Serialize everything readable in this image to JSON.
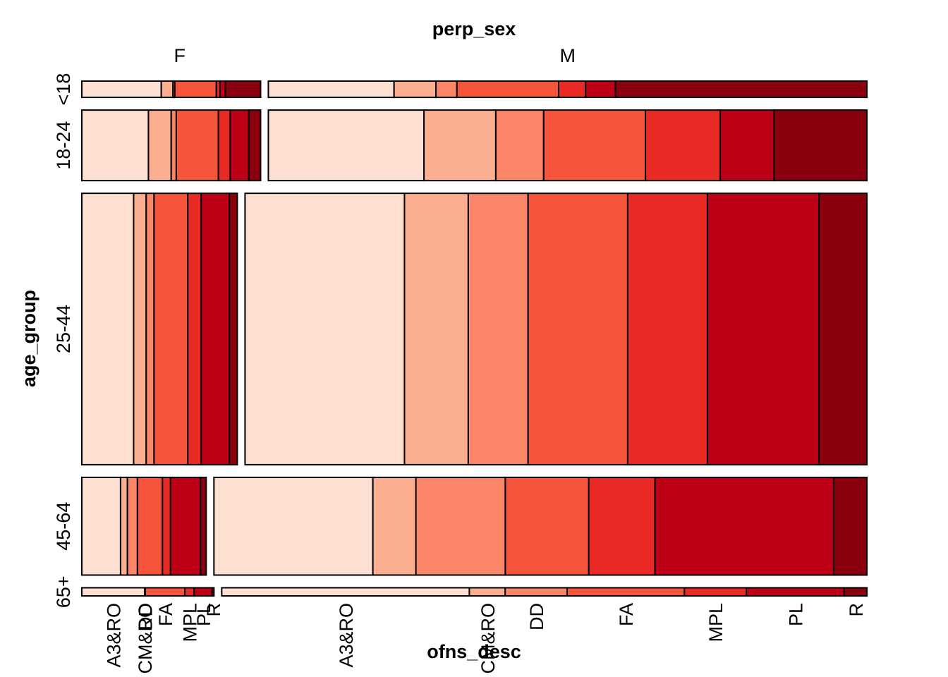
{
  "chart_data": {
    "type": "mosaic",
    "col_variable": "perp_sex",
    "row_variable": "age_group",
    "cell_variable": "ofns_desc",
    "sexes": [
      "F",
      "M"
    ],
    "age_groups": [
      "<18",
      "18-24",
      "25-44",
      "45-64",
      "65+"
    ],
    "offenses": [
      "A3&RO",
      "CM&RO",
      "DD",
      "FA",
      "MPL",
      "PL",
      "R"
    ],
    "offense_tick_labels": {
      "F": [
        "A3&RO",
        "CM&RO",
        "DD",
        "FA",
        "MPL",
        "PL",
        "R"
      ],
      "M": [
        "A3&RO",
        "CM&RO",
        "DD",
        "FA",
        "MPL",
        "PL",
        "R"
      ]
    },
    "colors": [
      "#fee0d2",
      "#fcae91",
      "#fb8567",
      "#f6553c",
      "#e92a25",
      "#be0017",
      "#8b000f"
    ],
    "age_group_share": [
      0.06,
      0.26,
      1.0,
      0.36,
      0.03
    ],
    "female_share": {
      "<18": 0.23,
      "18-24": 0.23,
      "25-44": 0.2,
      "45-64": 0.16,
      "65+": 0.17
    },
    "offense_share": {
      "F": {
        "<18": [
          0.44,
          0.065,
          0.01,
          0.23,
          0.02,
          0.03,
          0.195
        ],
        "18-24": [
          0.395,
          0.135,
          0.03,
          0.25,
          0.07,
          0.11,
          0.07
        ],
        "25-44": [
          0.33,
          0.08,
          0.05,
          0.215,
          0.085,
          0.18,
          0.05
        ],
        "45-64": [
          0.31,
          0.055,
          0.08,
          0.2,
          0.065,
          0.24,
          0.045
        ],
        "65+": [
          0.475,
          0.0,
          0.005,
          0.3,
          0.07,
          0.135,
          0.015
        ]
      },
      "M": {
        "<18": [
          0.21,
          0.07,
          0.035,
          0.17,
          0.045,
          0.05,
          0.42
        ],
        "18-24": [
          0.26,
          0.12,
          0.08,
          0.17,
          0.125,
          0.09,
          0.155
        ],
        "25-44": [
          0.2,
          0.08,
          0.075,
          0.125,
          0.1,
          0.14,
          0.06
        ],
        "45-64": [
          0.24,
          0.065,
          0.135,
          0.126,
          0.1,
          0.27,
          0.05
        ],
        "65+": [
          0.38,
          0.055,
          0.095,
          0.18,
          0.095,
          0.15,
          0.035
        ]
      }
    }
  },
  "labels": {
    "title_top": "perp_sex",
    "title_left": "age_group",
    "title_bottom": "ofns_desc"
  }
}
